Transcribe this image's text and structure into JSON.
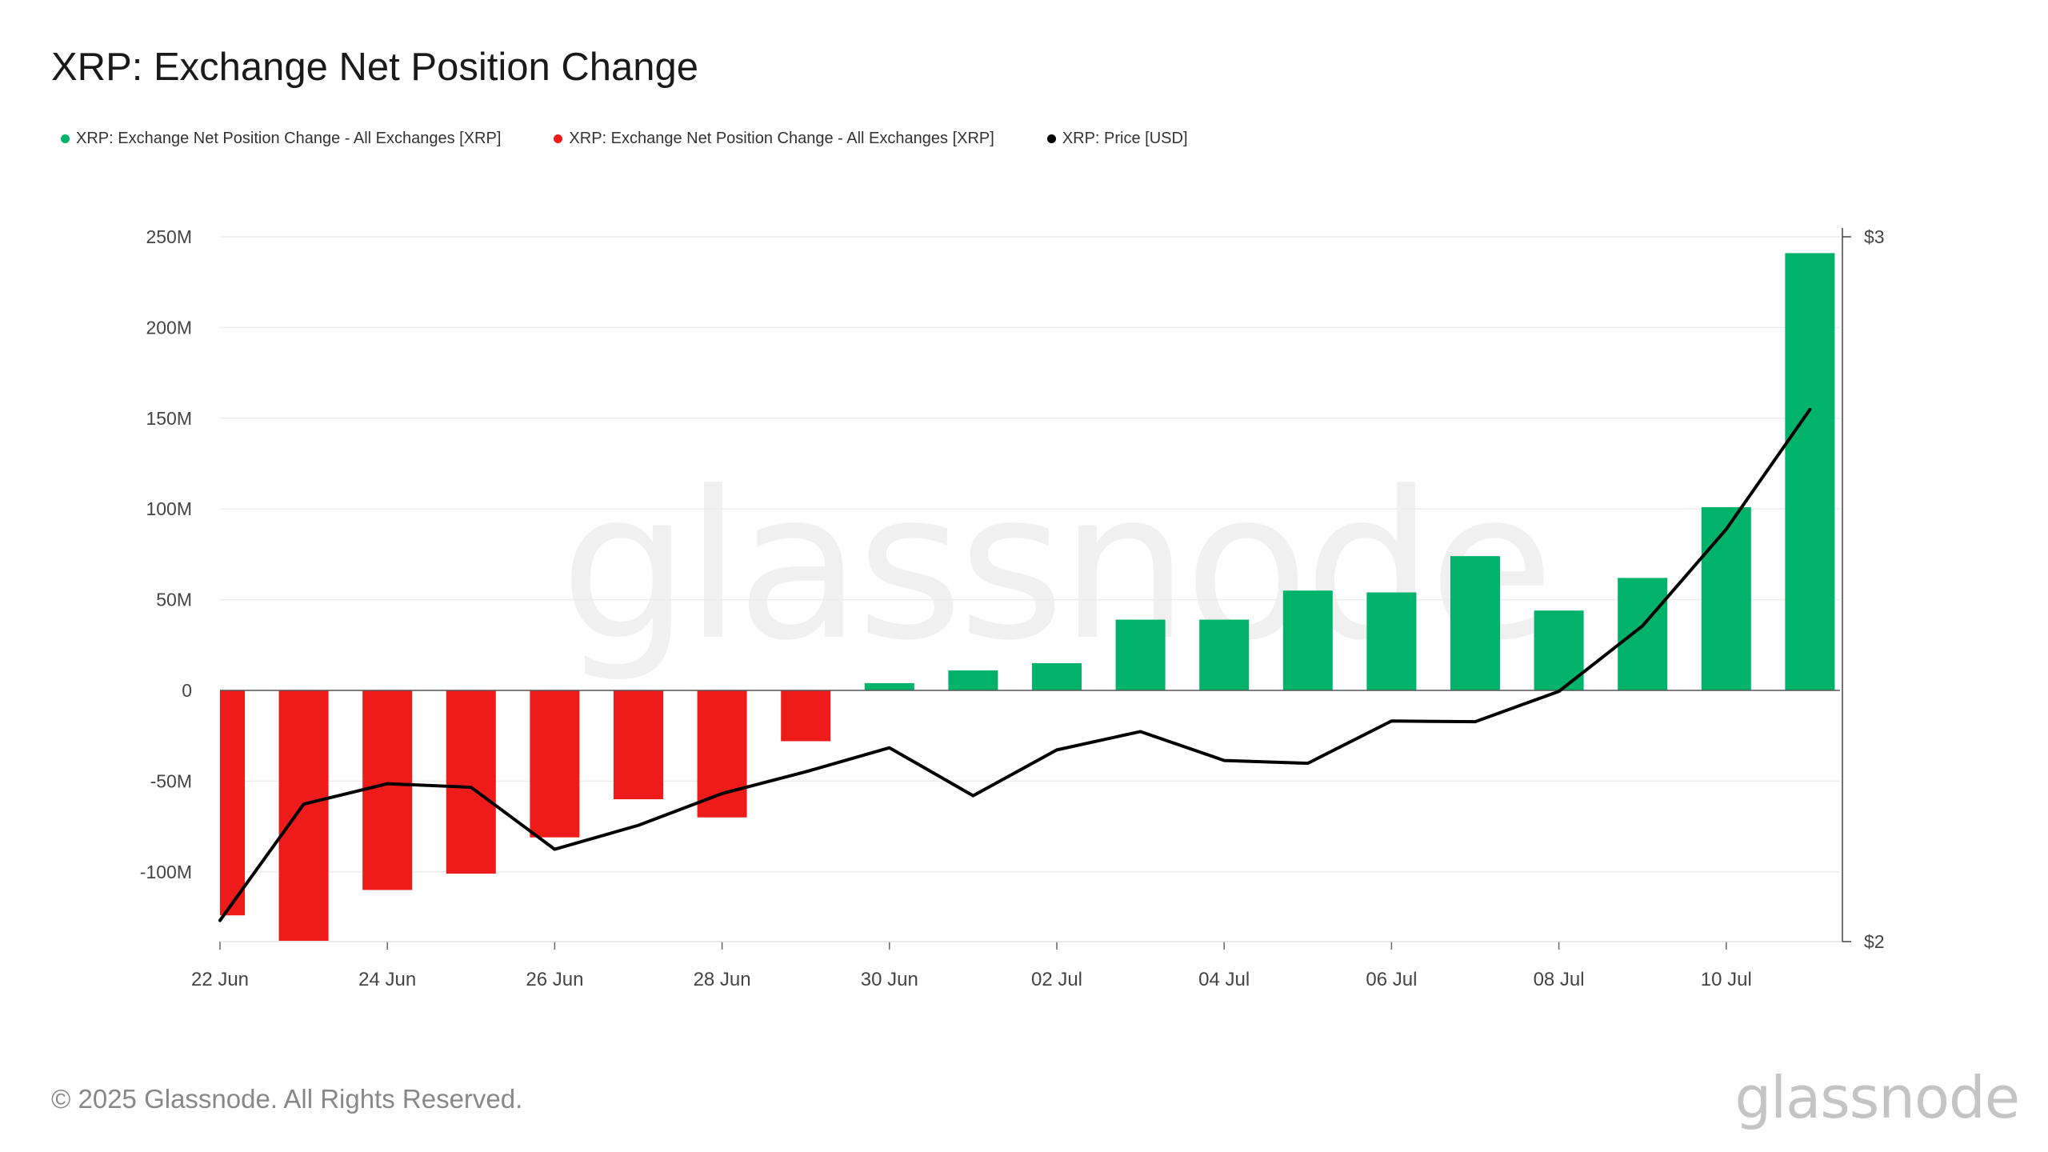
{
  "title": "XRP: Exchange Net Position Change",
  "legend": [
    {
      "label": "XRP: Exchange Net Position Change - All Exchanges [XRP]",
      "color": "#00b26a"
    },
    {
      "label": "XRP: Exchange Net Position Change - All Exchanges [XRP]",
      "color": "#ee1b1b"
    },
    {
      "label": "XRP: Price [USD]",
      "color": "#000000"
    }
  ],
  "footer": "© 2025 Glassnode. All Rights Reserved.",
  "brand": "glassnode",
  "watermark": "glassnode",
  "colors": {
    "positive": "#00b26a",
    "negative": "#ee1b1b",
    "price": "#000000",
    "grid": "#ececec",
    "axis": "#333333"
  },
  "chart_data": {
    "type": "bar",
    "categories": [
      "22 Jun",
      "23 Jun",
      "24 Jun",
      "25 Jun",
      "26 Jun",
      "27 Jun",
      "28 Jun",
      "29 Jun",
      "30 Jun",
      "01 Jul",
      "02 Jul",
      "03 Jul",
      "04 Jul",
      "05 Jul",
      "06 Jul",
      "07 Jul",
      "08 Jul",
      "09 Jul",
      "10 Jul",
      "11 Jul"
    ],
    "x_tick_labels": [
      "22 Jun",
      "24 Jun",
      "26 Jun",
      "28 Jun",
      "30 Jun",
      "02 Jul",
      "04 Jul",
      "06 Jul",
      "08 Jul",
      "10 Jul"
    ],
    "series": [
      {
        "name": "XRP: Exchange Net Position Change - All Exchanges [XRP]",
        "axis": "left",
        "values": [
          -124,
          -138,
          -110,
          -101,
          -81,
          -60,
          -70,
          -28,
          4,
          11,
          15,
          39,
          39,
          55,
          54,
          74,
          44,
          62,
          101,
          241
        ]
      },
      {
        "name": "XRP: Price [USD]",
        "axis": "right",
        "type": "line",
        "values": [
          2.03,
          2.195,
          2.224,
          2.219,
          2.131,
          2.165,
          2.21,
          2.241,
          2.275,
          2.207,
          2.272,
          2.298,
          2.257,
          2.253,
          2.313,
          2.312,
          2.355,
          2.448,
          2.585,
          2.755
        ]
      }
    ],
    "y_left": {
      "ticks": [
        250,
        200,
        150,
        100,
        50,
        0,
        -50,
        -100
      ],
      "tick_labels": [
        "250M",
        "200M",
        "150M",
        "100M",
        "50M",
        "0",
        "-50M",
        "-100M"
      ],
      "ylim": [
        -140,
        250
      ],
      "unit": "M"
    },
    "y_right": {
      "tick_labels": [
        "$3",
        "$2"
      ],
      "ylim": [
        2,
        3
      ]
    },
    "grid": true,
    "legend_position": "top-left"
  }
}
